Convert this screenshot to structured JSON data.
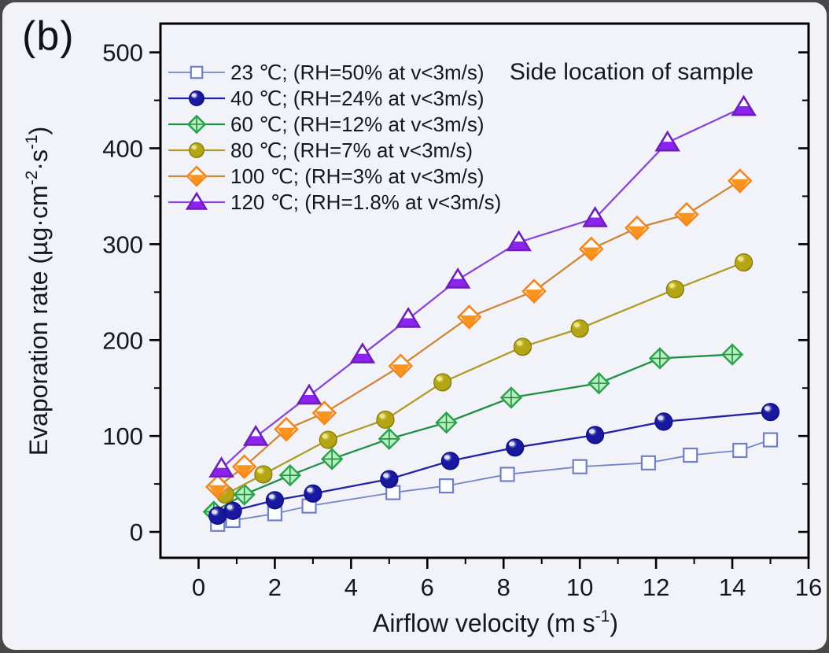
{
  "panel_label": "(b)",
  "colors": {
    "surround": "#484848",
    "background": "#f1f3f8",
    "frame": "#000000",
    "text": "#16161e"
  },
  "chart_data": {
    "type": "line",
    "title": "Side location of sample",
    "xlabel": "Airflow velocity (m s⁻¹)",
    "ylabel": "Evaporation rate (µg·cm⁻²·s⁻¹)",
    "xlabel_parts": [
      {
        "t": "Airflow velocity (m s",
        "sup": false
      },
      {
        "t": "-1",
        "sup": true
      },
      {
        "t": ")",
        "sup": false
      }
    ],
    "ylabel_parts": [
      {
        "t": "Evaporation rate (µg·cm",
        "sup": false
      },
      {
        "t": "-2",
        "sup": true
      },
      {
        "t": "·s",
        "sup": false
      },
      {
        "t": "-1",
        "sup": true
      },
      {
        "t": ")",
        "sup": false
      }
    ],
    "xlim": [
      -1,
      16
    ],
    "ylim": [
      -27,
      530
    ],
    "grid": false,
    "legend_position": "top-left",
    "x_axis": {
      "major_ticks": [
        0,
        2,
        4,
        6,
        8,
        10,
        12,
        14,
        16
      ],
      "minor_ticks": [
        1,
        3,
        5,
        7,
        9,
        11,
        13,
        15
      ],
      "major_labels": [
        "0",
        "2",
        "4",
        "6",
        "8",
        "10",
        "12",
        "14",
        "16"
      ]
    },
    "y_axis": {
      "major_ticks": [
        0,
        100,
        200,
        300,
        400,
        500
      ],
      "minor_ticks": [
        50,
        150,
        250,
        350,
        450
      ],
      "major_labels": [
        "0",
        "100",
        "200",
        "300",
        "400",
        "500"
      ]
    },
    "series": [
      {
        "name": "23C",
        "temperature_c": 23,
        "rh_note": "RH=50% at v<3m/s",
        "label": "23 ℃; (RH=50% at v<3m/s)",
        "marker": "open-square",
        "line_color": "#7585c8",
        "stroke": "#7080c6",
        "fill": "#fbfcff",
        "x": [
          0.5,
          0.9,
          2.0,
          2.9,
          5.1,
          6.5,
          8.1,
          10.0,
          11.8,
          12.9,
          14.2,
          15.0
        ],
        "y": [
          8,
          12,
          19,
          27,
          41,
          48,
          60,
          68,
          72,
          80,
          85,
          96
        ]
      },
      {
        "name": "40C",
        "temperature_c": 40,
        "rh_note": "RH=24% at v<3m/s",
        "label": "40 ℃; (RH=24% at v<3m/s)",
        "marker": "sphere",
        "line_color": "#2222a6",
        "stroke": "#0d0d78",
        "fill": "#1818a0",
        "highlight": "#dfe3fb",
        "x": [
          0.5,
          0.9,
          2.0,
          3.0,
          5.0,
          6.6,
          8.3,
          10.4,
          12.2,
          15.0
        ],
        "y": [
          17,
          22,
          33,
          40,
          55,
          74,
          88,
          101,
          115,
          125
        ]
      },
      {
        "name": "60C",
        "temperature_c": 60,
        "rh_note": "RH=12% at v<3m/s",
        "label": "60 ℃; (RH=12% at v<3m/s)",
        "marker": "diamond-cross",
        "line_color": "#1f8f45",
        "stroke": "#2ba04e",
        "fill": "#b9efbe",
        "x": [
          0.4,
          1.2,
          2.4,
          3.5,
          5.0,
          6.5,
          8.2,
          10.5,
          12.1,
          14.0
        ],
        "y": [
          21,
          39,
          59,
          76,
          97,
          114,
          140,
          155,
          181,
          185
        ]
      },
      {
        "name": "80C",
        "temperature_c": 80,
        "rh_note": "RH=7% at v<3m/s",
        "label": "80 ℃; (RH=7% at v<3m/s)",
        "marker": "sphere",
        "line_color": "#b09a28",
        "stroke": "#84790a",
        "fill": "#b3a513",
        "highlight": "#eee688",
        "x": [
          0.7,
          1.7,
          3.4,
          4.9,
          6.4,
          8.5,
          10.0,
          12.5,
          14.3
        ],
        "y": [
          39,
          60,
          96,
          117,
          156,
          193,
          212,
          253,
          281
        ]
      },
      {
        "name": "100C",
        "temperature_c": 100,
        "rh_note": "RH=3% at v<3m/s",
        "label": "100 ℃; (RH=3% at v<3m/s)",
        "marker": "diamond-half",
        "line_color": "#cd8738",
        "stroke": "#f5861d",
        "fill": "#f8931e",
        "top_fill": "#fdfdff",
        "x": [
          0.5,
          1.2,
          2.3,
          3.3,
          5.3,
          7.1,
          8.8,
          10.3,
          11.5,
          12.8,
          14.2
        ],
        "y": [
          47,
          68,
          107,
          124,
          173,
          224,
          251,
          295,
          317,
          331,
          366
        ]
      },
      {
        "name": "120C",
        "temperature_c": 120,
        "rh_note": "RH=1.8% at v<3m/s",
        "label": "120 ℃; (RH=1.8% at v<3m/s)",
        "marker": "triangle-half",
        "line_color": "#8a46d9",
        "stroke": "#6d1fb8",
        "fill": "#8d23f0",
        "top_fill": "#fdfdff",
        "x": [
          0.6,
          1.5,
          2.9,
          4.3,
          5.5,
          6.8,
          8.4,
          10.4,
          12.3,
          14.3
        ],
        "y": [
          66,
          99,
          142,
          185,
          222,
          263,
          302,
          327,
          406,
          443
        ]
      }
    ]
  }
}
